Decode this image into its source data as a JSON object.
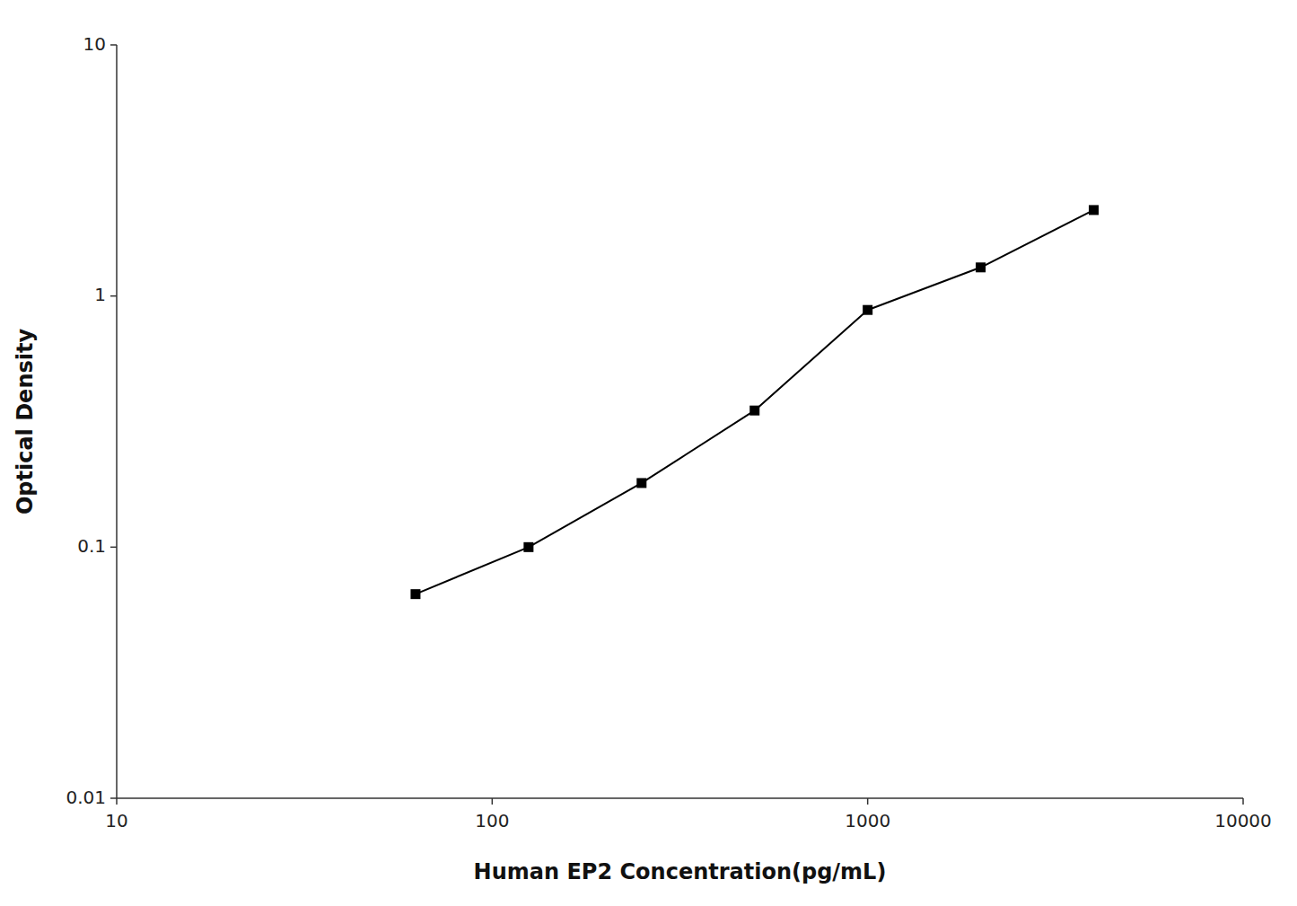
{
  "chart_data": {
    "type": "line",
    "xlabel": "Human EP2 Concentration(pg/mL)",
    "ylabel": "Optical Density",
    "x": [
      62.5,
      125,
      250,
      500,
      1000,
      2000,
      4000
    ],
    "values": [
      0.065,
      0.1,
      0.18,
      0.35,
      0.88,
      1.3,
      2.2
    ],
    "color": "#000000",
    "marker": "square",
    "log": true,
    "xlim": [
      10,
      10000
    ],
    "ylim": [
      0.01,
      10
    ],
    "xticks": [
      10,
      100,
      1000,
      10000
    ],
    "yticks": [
      0.01,
      0.1,
      1,
      10
    ],
    "grid": false
  }
}
